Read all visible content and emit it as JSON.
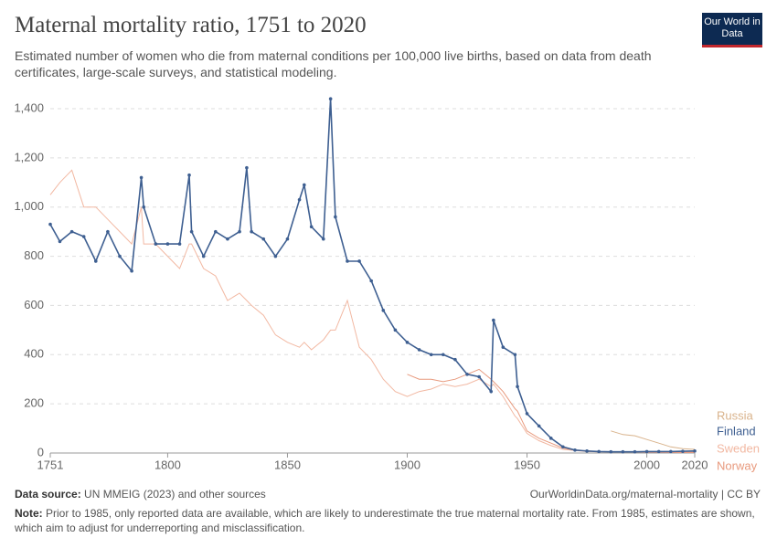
{
  "header": {
    "title": "Maternal mortality ratio, 1751 to 2020",
    "subtitle": "Estimated number of women who die from maternal conditions per 100,000 live births, based on data from death certificates, large-scale surveys, and statistical modeling.",
    "logo": "Our World in Data"
  },
  "footer": {
    "source_label": "Data source:",
    "source": "UN MMEIG (2023) and other sources",
    "url": "OurWorldinData.org/maternal-mortality | CC BY",
    "note_label": "Note:",
    "note": "Prior to 1985, only reported data are available, which are likely to underestimate the true maternal mortality rate. From 1985, estimates are shown, which aim to adjust for underreporting and misclassification."
  },
  "chart_data": {
    "type": "line",
    "grid": true,
    "x": [
      1751,
      1755,
      1760,
      1765,
      1770,
      1775,
      1780,
      1785,
      1789,
      1790,
      1795,
      1800,
      1805,
      1809,
      1810,
      1815,
      1820,
      1825,
      1830,
      1833,
      1835,
      1840,
      1845,
      1850,
      1855,
      1857,
      1860,
      1865,
      1868,
      1870,
      1875,
      1880,
      1885,
      1890,
      1895,
      1900,
      1905,
      1910,
      1915,
      1920,
      1925,
      1930,
      1935,
      1936,
      1940,
      1945,
      1946,
      1950,
      1955,
      1960,
      1965,
      1970,
      1975,
      1980,
      1985,
      1990,
      1995,
      2000,
      2005,
      2010,
      2015,
      2020
    ],
    "xlim": [
      1751,
      2020
    ],
    "xticks": [
      1751,
      1800,
      1850,
      1900,
      1950,
      2000,
      2020
    ],
    "ylim": [
      0,
      1400
    ],
    "yticks": [
      0,
      200,
      400,
      600,
      800,
      {
        "value": 1000,
        "label": "1,000"
      },
      {
        "value": 1200,
        "label": "1,200"
      },
      {
        "value": 1400,
        "label": "1,400"
      }
    ],
    "series": [
      {
        "name": "Russia",
        "color": "#d9b38c",
        "values": [
          null,
          null,
          null,
          null,
          null,
          null,
          null,
          null,
          null,
          null,
          null,
          null,
          null,
          null,
          null,
          null,
          null,
          null,
          null,
          null,
          null,
          null,
          null,
          null,
          null,
          null,
          null,
          null,
          null,
          null,
          null,
          null,
          null,
          null,
          null,
          null,
          null,
          null,
          null,
          null,
          null,
          null,
          null,
          null,
          null,
          null,
          null,
          null,
          null,
          null,
          null,
          null,
          null,
          null,
          90,
          75,
          70,
          55,
          40,
          25,
          18,
          15
        ]
      },
      {
        "name": "Finland",
        "color": "#3e5f91",
        "values": [
          930,
          860,
          900,
          880,
          780,
          900,
          800,
          740,
          1120,
          1000,
          850,
          850,
          850,
          1130,
          900,
          800,
          900,
          870,
          900,
          1160,
          900,
          870,
          800,
          870,
          1030,
          1090,
          920,
          870,
          1440,
          960,
          780,
          780,
          700,
          580,
          500,
          450,
          420,
          400,
          400,
          380,
          320,
          310,
          250,
          540,
          430,
          400,
          270,
          160,
          110,
          60,
          25,
          12,
          8,
          6,
          5,
          5,
          5,
          6,
          6,
          6,
          7,
          8
        ]
      },
      {
        "name": "Sweden",
        "color": "#f2b8a2",
        "values": [
          1050,
          1100,
          1150,
          1000,
          1000,
          950,
          900,
          850,
          1000,
          850,
          850,
          800,
          750,
          850,
          850,
          750,
          720,
          620,
          650,
          620,
          600,
          560,
          480,
          450,
          430,
          450,
          420,
          460,
          500,
          500,
          620,
          430,
          380,
          300,
          250,
          230,
          250,
          260,
          280,
          270,
          280,
          300,
          270,
          280,
          230,
          150,
          140,
          80,
          50,
          30,
          15,
          10,
          6,
          5,
          4,
          4,
          4,
          4,
          4,
          4,
          4,
          4
        ]
      },
      {
        "name": "Norway",
        "color": "#e89a7e",
        "values": [
          null,
          null,
          null,
          null,
          null,
          null,
          null,
          null,
          null,
          null,
          null,
          null,
          null,
          null,
          null,
          null,
          null,
          null,
          null,
          null,
          null,
          null,
          null,
          null,
          null,
          null,
          null,
          null,
          null,
          null,
          null,
          null,
          null,
          null,
          null,
          320,
          300,
          300,
          290,
          300,
          320,
          340,
          300,
          290,
          250,
          180,
          170,
          90,
          60,
          40,
          20,
          12,
          8,
          6,
          5,
          4,
          4,
          3,
          3,
          2,
          2,
          2
        ]
      }
    ]
  }
}
